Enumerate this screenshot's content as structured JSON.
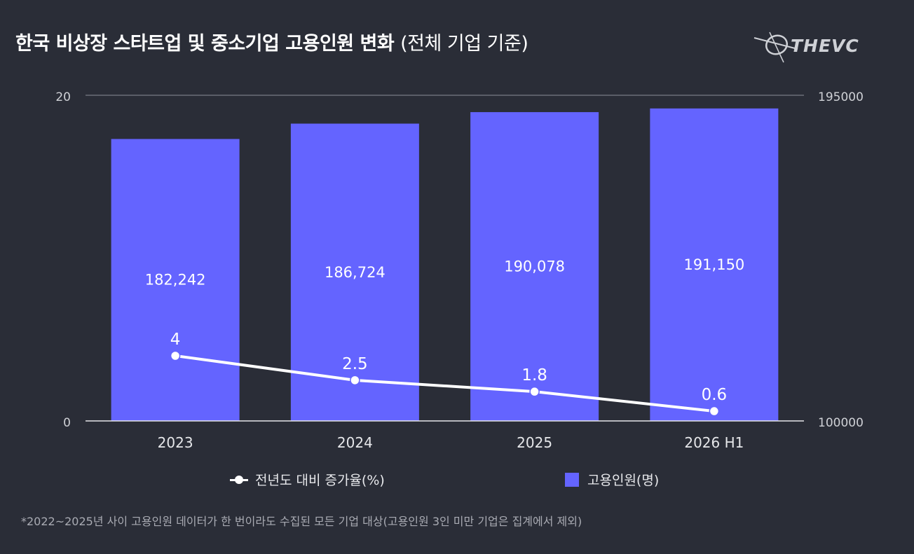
{
  "header": {
    "title_main": "한국 비상장 스타트업 및 중소기업 고용인원 변화",
    "title_sub": "(전체 기업 기준)",
    "logo_text": "THEVC"
  },
  "legend": {
    "line_label": "전년도 대비 증가율(%)",
    "bar_label": "고용인원(명)"
  },
  "footnote": "*2022~2025년 사이 고용인원 데이터가 한 번이라도 수집된 모든 기업 대상(고용인원 3인 미만 기업은 집계에서 제외)",
  "colors": {
    "bar": "#6464ff",
    "line": "#ffffff",
    "background": "#2a2d37",
    "axis": "#cfd1d6"
  },
  "chart_data": {
    "type": "bar",
    "categories": [
      "2023",
      "2024",
      "2025",
      "2026 H1"
    ],
    "series": [
      {
        "name": "고용인원(명)",
        "type": "bar",
        "axis": "right",
        "values": [
          182242,
          186724,
          190078,
          191150
        ],
        "labels": [
          "182,242",
          "186,724",
          "190,078",
          "191,150"
        ]
      },
      {
        "name": "전년도 대비 증가율(%)",
        "type": "line",
        "axis": "left",
        "values": [
          4,
          2.5,
          1.8,
          0.6
        ],
        "labels": [
          "4",
          "2.5",
          "1.8",
          "0.6"
        ]
      }
    ],
    "left_axis": {
      "ylim": [
        0,
        20
      ],
      "ticks": [
        "0",
        "20"
      ]
    },
    "right_axis": {
      "ylim": [
        100000,
        195000
      ],
      "ticks": [
        "100000",
        "195000"
      ]
    },
    "legend_position": "bottom",
    "grid": false
  }
}
